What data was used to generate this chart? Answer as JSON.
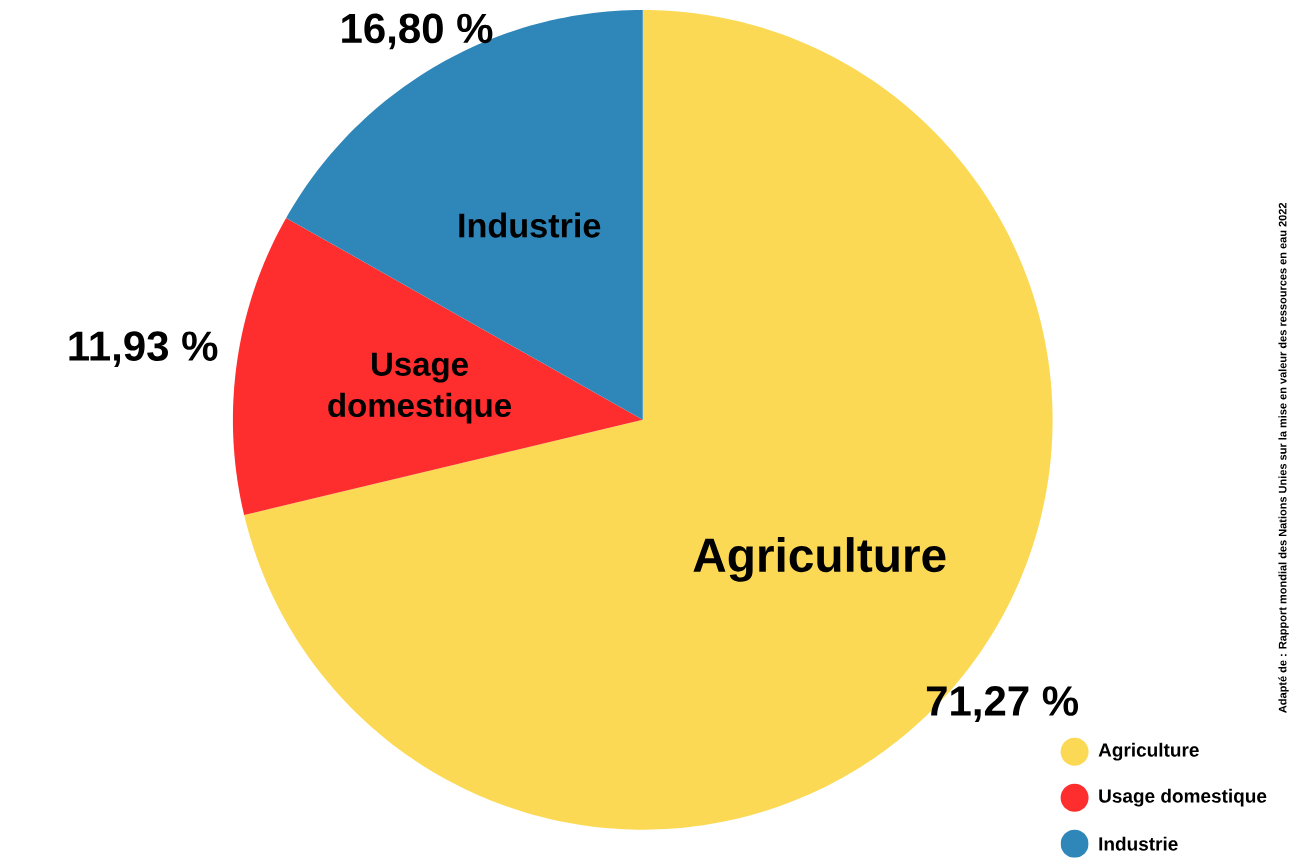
{
  "chart_data": {
    "type": "pie",
    "categories": [
      "Agriculture",
      "Usage domestique",
      "Industrie"
    ],
    "values": [
      71.27,
      11.93,
      16.8
    ],
    "colors": [
      "#fcd955",
      "#fe2d2e",
      "#2e86b9"
    ],
    "value_labels": [
      "71,27 %",
      "11,93 %",
      "16,80 %"
    ],
    "legend": "bottom right",
    "annotations": [
      "Adapté de : Rapport mondial des Nations Unies sur la mise en valeur des ressources en eau 2022"
    ]
  }
}
